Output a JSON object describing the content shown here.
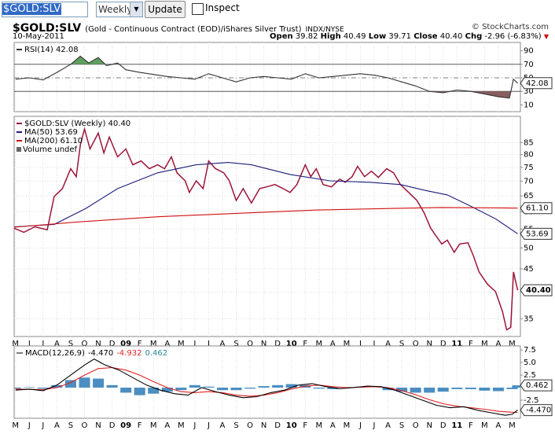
{
  "toolbar": {
    "symbol": "$GOLD:SLV",
    "period": "Weekly",
    "button": "Update",
    "checkbox": "Inspect"
  },
  "header": {
    "title": "$GOLD:SLV",
    "subtitle": "(Gold - Continuous Contract (EOD)/iShares Silver Trust)",
    "exchange": "INDX/NYSE",
    "credit": "© StockCharts.com",
    "date": "10-May-2011",
    "quote": [
      {
        "label": "Open",
        "value": "39.82"
      },
      {
        "label": "High",
        "value": "40.49"
      },
      {
        "label": "Low",
        "value": "39.71"
      },
      {
        "label": "Close",
        "value": "40.40"
      },
      {
        "label": "Chg",
        "value": "-2.96 (-6.83%)"
      }
    ]
  },
  "chart_data": [
    {
      "type": "line",
      "xlim": [
        -0.1,
        36.6
      ],
      "ylim": [
        0,
        100
      ],
      "yticks": [
        10,
        30,
        50,
        70,
        90
      ],
      "levels": [
        {
          "value": 70,
          "style": "solid"
        },
        {
          "value": 50,
          "style": "dash"
        },
        {
          "value": 30,
          "style": "solid"
        }
      ],
      "series": [
        {
          "name": "RSI(14) 42.08",
          "tag": "42.08",
          "color": "#333333",
          "fill_above": "#5f9f5f",
          "fill_below": "#8a5e5e",
          "x": [
            0,
            1,
            2,
            3,
            4,
            4.7,
            5.3,
            6,
            6.6,
            7.4,
            8,
            9,
            10,
            11,
            12,
            13,
            14,
            15,
            16,
            17,
            18,
            19,
            20,
            21,
            22,
            23,
            24,
            25,
            26,
            27,
            28,
            29,
            30,
            31,
            32,
            33,
            34,
            35,
            35.8,
            36.1,
            36.4
          ],
          "values": [
            48,
            50,
            47,
            58,
            70,
            82,
            72,
            80,
            68,
            72,
            62,
            58,
            55,
            52,
            50,
            48,
            56,
            50,
            44,
            50,
            52,
            50,
            48,
            56,
            50,
            52,
            54,
            56,
            54,
            50,
            44,
            38,
            30,
            28,
            32,
            30,
            26,
            22,
            20,
            48,
            42.08
          ]
        }
      ]
    },
    {
      "type": "line",
      "log": true,
      "grid": true,
      "xlim": [
        -0.1,
        36.6
      ],
      "ylim": [
        32,
        97
      ],
      "yticks": [
        35,
        40,
        45,
        50,
        55,
        60,
        65,
        70,
        75,
        80,
        85
      ],
      "xticks": [
        {
          "value": 0,
          "label": "M"
        },
        {
          "value": 1,
          "label": "J"
        },
        {
          "value": 2,
          "label": "J"
        },
        {
          "value": 3,
          "label": "A"
        },
        {
          "value": 4,
          "label": "S"
        },
        {
          "value": 5,
          "label": "O"
        },
        {
          "value": 6,
          "label": "N"
        },
        {
          "value": 7,
          "label": "D"
        },
        {
          "value": 8,
          "label": "09"
        },
        {
          "value": 9,
          "label": "F"
        },
        {
          "value": 10,
          "label": "M"
        },
        {
          "value": 11,
          "label": "A"
        },
        {
          "value": 12,
          "label": "M"
        },
        {
          "value": 13,
          "label": "J"
        },
        {
          "value": 14,
          "label": "J"
        },
        {
          "value": 15,
          "label": "A"
        },
        {
          "value": 16,
          "label": "S"
        },
        {
          "value": 17,
          "label": "O"
        },
        {
          "value": 18,
          "label": "N"
        },
        {
          "value": 19,
          "label": "D"
        },
        {
          "value": 20,
          "label": "10"
        },
        {
          "value": 21,
          "label": "F"
        },
        {
          "value": 22,
          "label": "M"
        },
        {
          "value": 23,
          "label": "A"
        },
        {
          "value": 24,
          "label": "M"
        },
        {
          "value": 25,
          "label": "J"
        },
        {
          "value": 26,
          "label": "J"
        },
        {
          "value": 27,
          "label": "A"
        },
        {
          "value": 28,
          "label": "S"
        },
        {
          "value": 29,
          "label": "O"
        },
        {
          "value": 30,
          "label": "N"
        },
        {
          "value": 31,
          "label": "D"
        },
        {
          "value": 32,
          "label": "11"
        },
        {
          "value": 33,
          "label": "F"
        },
        {
          "value": 34,
          "label": "M"
        },
        {
          "value": 35,
          "label": "A"
        },
        {
          "value": 36,
          "label": "M"
        }
      ],
      "legend_extra": "Volume undef",
      "series": [
        {
          "name": "$GOLD:SLV (Weekly) 40.40",
          "tag": "40.40",
          "color": "#9c1538",
          "x": [
            -0.1,
            0.6,
            1.4,
            2.3,
            2.8,
            3.4,
            4.0,
            4.4,
            4.7,
            5.0,
            5.4,
            6.0,
            6.4,
            6.8,
            7.4,
            8.0,
            8.5,
            9.1,
            9.7,
            10.3,
            10.8,
            11.3,
            11.7,
            12.3,
            12.6,
            13.1,
            13.6,
            14.0,
            14.5,
            15.1,
            15.5,
            16.0,
            16.5,
            17.1,
            17.7,
            18.2,
            18.8,
            19.4,
            19.9,
            20.4,
            21.0,
            21.4,
            21.8,
            22.3,
            22.9,
            23.5,
            23.9,
            24.4,
            24.8,
            25.3,
            25.8,
            26.3,
            26.9,
            27.4,
            27.9,
            28.5,
            29.1,
            29.6,
            30.1,
            30.5,
            30.9,
            31.3,
            31.8,
            32.2,
            32.8,
            33.2,
            33.6,
            34.2,
            34.8,
            35.3,
            35.6,
            35.9,
            36.1,
            36.4
          ],
          "values": [
            55.2,
            54.1,
            55.6,
            54.8,
            64.8,
            67.4,
            74.5,
            71.6,
            84.0,
            91.0,
            82.3,
            89.2,
            80.7,
            87.4,
            79.1,
            82.3,
            76.0,
            77.5,
            74.5,
            76.0,
            74.5,
            79.1,
            73.0,
            70.1,
            66.1,
            70.1,
            67.4,
            77.5,
            74.5,
            73.0,
            70.1,
            63.5,
            67.4,
            62.7,
            67.4,
            68.0,
            68.8,
            67.4,
            66.1,
            68.8,
            76.0,
            71.6,
            74.5,
            68.8,
            68.0,
            70.7,
            69.6,
            71.6,
            75.4,
            71.6,
            73.6,
            71.3,
            74.5,
            73.0,
            68.8,
            66.1,
            63.5,
            59.8,
            55.2,
            53.0,
            51.0,
            52.0,
            48.9,
            51.0,
            51.3,
            48.0,
            44.3,
            41.7,
            40.1,
            36.3,
            33.1,
            33.5,
            44.3,
            40.4
          ]
        },
        {
          "name": "MA(50) 53.69",
          "tag": "53.69",
          "color": "#1c1c7a",
          "x": [
            -0.1,
            2.8,
            5.1,
            7.4,
            10.3,
            13.1,
            15.4,
            17.1,
            19.9,
            22.8,
            25.6,
            27.9,
            29.6,
            31.3,
            33.0,
            34.8,
            36.4
          ],
          "values": [
            55.6,
            56.3,
            61.0,
            67.4,
            73.0,
            76.0,
            76.9,
            76.0,
            72.4,
            70.1,
            69.6,
            68.8,
            66.9,
            65.3,
            61.7,
            57.9,
            53.69
          ]
        },
        {
          "name": "MA(200) 61.10",
          "tag": "61.10",
          "color": "#d01010",
          "x": [
            -0.1,
            4.6,
            10.3,
            16.0,
            21.7,
            27.4,
            30.8,
            34.2,
            36.4
          ],
          "values": [
            55.5,
            57.0,
            58.5,
            59.5,
            60.5,
            61.0,
            61.3,
            61.2,
            61.1
          ]
        }
      ]
    },
    {
      "type": "line",
      "xlim": [
        -0.1,
        36.6
      ],
      "ylim": [
        -6.1,
        8.3
      ],
      "legend": "MACD(12,26,9)",
      "yticks": [
        -2.5,
        {
          "value": 2.5,
          "label": "2.5"
        },
        {
          "value": 5,
          "label": "5.0"
        },
        {
          "value": 7.5,
          "label": "7.5"
        }
      ],
      "xticks": [
        {
          "value": 0,
          "label": "M"
        },
        {
          "value": 1,
          "label": "J"
        },
        {
          "value": 2,
          "label": "J"
        },
        {
          "value": 3,
          "label": "A"
        },
        {
          "value": 4,
          "label": "S"
        },
        {
          "value": 5,
          "label": "O"
        },
        {
          "value": 6,
          "label": "N"
        },
        {
          "value": 7,
          "label": "D"
        },
        {
          "value": 8,
          "label": "09"
        },
        {
          "value": 9,
          "label": "F"
        },
        {
          "value": 10,
          "label": "M"
        },
        {
          "value": 11,
          "label": "A"
        },
        {
          "value": 12,
          "label": "M"
        },
        {
          "value": 13,
          "label": "J"
        },
        {
          "value": 14,
          "label": "J"
        },
        {
          "value": 15,
          "label": "A"
        },
        {
          "value": 16,
          "label": "S"
        },
        {
          "value": 17,
          "label": "O"
        },
        {
          "value": 18,
          "label": "N"
        },
        {
          "value": 19,
          "label": "D"
        },
        {
          "value": 20,
          "label": "10"
        },
        {
          "value": 21,
          "label": "F"
        },
        {
          "value": 22,
          "label": "M"
        },
        {
          "value": 23,
          "label": "A"
        },
        {
          "value": 24,
          "label": "M"
        },
        {
          "value": 25,
          "label": "J"
        },
        {
          "value": 26,
          "label": "J"
        },
        {
          "value": 27,
          "label": "A"
        },
        {
          "value": 28,
          "label": "S"
        },
        {
          "value": 29,
          "label": "O"
        },
        {
          "value": 30,
          "label": "N"
        },
        {
          "value": 31,
          "label": "D"
        },
        {
          "value": 32,
          "label": "11"
        },
        {
          "value": 33,
          "label": "F"
        },
        {
          "value": 34,
          "label": "M"
        },
        {
          "value": 35,
          "label": "A"
        },
        {
          "value": 36,
          "label": "M"
        }
      ],
      "series": [
        {
          "type": "bar",
          "name": "0.462",
          "tag": "0.462",
          "color": "#4a8ec2",
          "x": [
            0,
            1,
            2,
            3,
            4,
            5,
            6,
            7,
            8,
            9,
            10,
            11,
            12,
            13,
            14,
            15,
            16,
            17,
            18,
            19,
            20,
            21,
            22,
            23,
            24,
            25,
            26,
            27,
            28,
            29,
            30,
            31,
            32,
            33,
            34,
            35,
            36,
            36.4
          ],
          "values": [
            -0.2,
            0.1,
            -0.2,
            0.5,
            1.5,
            2,
            1.8,
            0.5,
            -1,
            -1.5,
            -1.2,
            -0.8,
            -0.5,
            0.5,
            0.2,
            -0.5,
            -0.5,
            -0.2,
            0.3,
            0.5,
            0.7,
            0.5,
            -0.2,
            -0.3,
            0.1,
            0.2,
            0,
            -0.5,
            -0.8,
            -1,
            -1,
            -0.8,
            -0.3,
            -0.3,
            -0.6,
            -0.7,
            -0.3,
            0.462
          ]
        },
        {
          "name": "-4.932",
          "color": "#e02020",
          "x": [
            0,
            2,
            3,
            4,
            5,
            6,
            7,
            8,
            9,
            10,
            11,
            12,
            13,
            14,
            15,
            16,
            17,
            18,
            19,
            20,
            21,
            22,
            23,
            24,
            25,
            26,
            27,
            28,
            29,
            30,
            31,
            32,
            33,
            34,
            35,
            36,
            36.4
          ],
          "values": [
            -0.3,
            -0.4,
            0,
            1,
            2.5,
            3.8,
            4,
            3.5,
            2.5,
            1.2,
            0,
            -0.8,
            -1,
            -0.8,
            -1,
            -1.5,
            -1.7,
            -1.5,
            -1,
            -0.3,
            0.3,
            0.5,
            0.2,
            0,
            0.1,
            0.2,
            0,
            -0.6,
            -1.4,
            -2.4,
            -3.2,
            -3.7,
            -4,
            -4.3,
            -4.7,
            -4.9,
            -4.932
          ]
        },
        {
          "name": "-4.470",
          "tag": "-4.470",
          "color": "#000000",
          "x": [
            0,
            1,
            2,
            3,
            4,
            5,
            5.7,
            6.5,
            7.5,
            8.5,
            9.5,
            10.5,
            11.5,
            12.5,
            13.5,
            14.5,
            15.5,
            16.5,
            17.5,
            18.5,
            19.5,
            20.5,
            21.5,
            22.5,
            23.5,
            24.5,
            25.5,
            26.5,
            27.5,
            28.5,
            29.5,
            30.5,
            31.5,
            32.5,
            33.5,
            34.5,
            35.5,
            36,
            36.4
          ],
          "values": [
            -0.5,
            -0.3,
            -0.6,
            0.5,
            2.5,
            4.5,
            5.7,
            4.5,
            3.5,
            2,
            0.5,
            -0.5,
            -1.2,
            -1.5,
            0,
            -0.8,
            -1.5,
            -2,
            -1.8,
            -1,
            -0.5,
            0.5,
            0.8,
            0.2,
            -0.2,
            0,
            0.3,
            0.2,
            -0.5,
            -1.5,
            -2.5,
            -3.5,
            -4.0,
            -3.8,
            -4.5,
            -5.0,
            -5.5,
            -5.3,
            -4.47
          ]
        }
      ]
    }
  ]
}
